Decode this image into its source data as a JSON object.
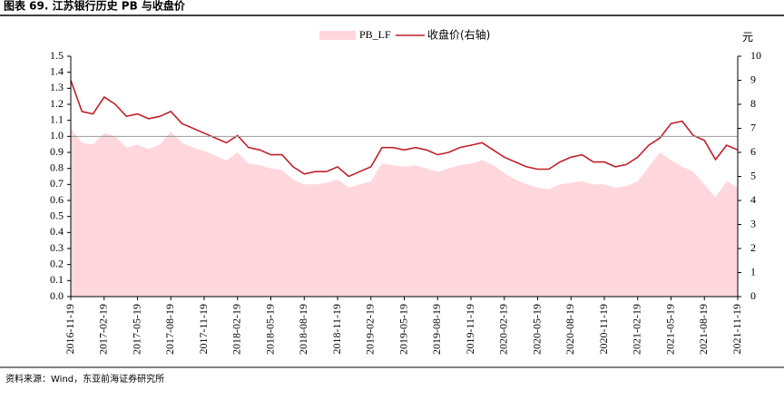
{
  "chart_data": {
    "type": "area-line",
    "title": "图表 69. 江苏银行历史 PB 与收盘价",
    "source": "资料来源：Wind，东亚前海证券研究所",
    "y2label": "元",
    "x": [
      "2016-11-19",
      "2016-12-19",
      "2017-01-19",
      "2017-02-19",
      "2017-03-19",
      "2017-04-19",
      "2017-05-19",
      "2017-06-19",
      "2017-07-19",
      "2017-08-19",
      "2017-09-19",
      "2017-10-19",
      "2017-11-19",
      "2017-12-19",
      "2018-01-19",
      "2018-02-19",
      "2018-03-19",
      "2018-04-19",
      "2018-05-19",
      "2018-06-19",
      "2018-07-19",
      "2018-08-19",
      "2018-09-19",
      "2018-10-19",
      "2018-11-19",
      "2018-12-19",
      "2019-01-19",
      "2019-02-19",
      "2019-03-19",
      "2019-04-19",
      "2019-05-19",
      "2019-06-19",
      "2019-07-19",
      "2019-08-19",
      "2019-09-19",
      "2019-10-19",
      "2019-11-19",
      "2019-12-19",
      "2020-01-19",
      "2020-02-19",
      "2020-03-19",
      "2020-04-19",
      "2020-05-19",
      "2020-06-19",
      "2020-07-19",
      "2020-08-19",
      "2020-09-19",
      "2020-10-19",
      "2020-11-19",
      "2020-12-19",
      "2021-01-19",
      "2021-02-19",
      "2021-03-19",
      "2021-04-19",
      "2021-05-19",
      "2021-06-19",
      "2021-07-19",
      "2021-08-19",
      "2021-09-19",
      "2021-10-19",
      "2021-11-19"
    ],
    "series": [
      {
        "name": "PB_LF",
        "color": "#ffd7dc",
        "kind": "area",
        "values": [
          1.05,
          0.96,
          0.95,
          1.02,
          1.0,
          0.93,
          0.95,
          0.92,
          0.95,
          1.03,
          0.96,
          0.93,
          0.91,
          0.88,
          0.85,
          0.9,
          0.83,
          0.82,
          0.8,
          0.79,
          0.73,
          0.7,
          0.7,
          0.71,
          0.73,
          0.68,
          0.7,
          0.72,
          0.83,
          0.82,
          0.81,
          0.82,
          0.8,
          0.78,
          0.8,
          0.82,
          0.83,
          0.85,
          0.82,
          0.77,
          0.73,
          0.7,
          0.68,
          0.67,
          0.7,
          0.71,
          0.72,
          0.7,
          0.7,
          0.68,
          0.69,
          0.72,
          0.81,
          0.9,
          0.85,
          0.81,
          0.78,
          0.7,
          0.62,
          0.72,
          0.68
        ]
      },
      {
        "name": "收盘价(右轴)",
        "color": "#c0202a",
        "kind": "line",
        "axis": "y2",
        "values": [
          9.0,
          7.7,
          7.6,
          8.3,
          8.0,
          7.5,
          7.6,
          7.4,
          7.5,
          7.7,
          7.2,
          7.0,
          6.8,
          6.6,
          6.4,
          6.7,
          6.2,
          6.1,
          5.9,
          5.9,
          5.4,
          5.1,
          5.2,
          5.2,
          5.4,
          5.0,
          5.2,
          5.4,
          6.2,
          6.2,
          6.1,
          6.2,
          6.1,
          5.9,
          6.0,
          6.2,
          6.3,
          6.4,
          6.1,
          5.8,
          5.6,
          5.4,
          5.3,
          5.3,
          5.6,
          5.8,
          5.9,
          5.6,
          5.6,
          5.4,
          5.5,
          5.8,
          6.3,
          6.6,
          7.2,
          7.3,
          6.7,
          6.5,
          5.7,
          6.3,
          6.1
        ]
      }
    ],
    "hline": 1.0,
    "ylim": [
      0,
      1.5
    ],
    "yticks": [
      {
        "value": 0,
        "label": "0.0"
      },
      {
        "value": 0.1,
        "label": "0.1"
      },
      {
        "value": 0.2,
        "label": "0.2"
      },
      {
        "value": 0.3,
        "label": "0.3"
      },
      {
        "value": 0.4,
        "label": "0.4"
      },
      {
        "value": 0.5,
        "label": "0.5"
      },
      {
        "value": 0.6,
        "label": "0.6"
      },
      {
        "value": 0.7,
        "label": "0.7"
      },
      {
        "value": 0.8,
        "label": "0.8"
      },
      {
        "value": 0.9,
        "label": "0.9"
      },
      {
        "value": 1.0,
        "label": "1.0"
      },
      {
        "value": 1.1,
        "label": "1.1"
      },
      {
        "value": 1.2,
        "label": "1.2"
      },
      {
        "value": 1.3,
        "label": "1.3"
      },
      {
        "value": 1.4,
        "label": "1.4"
      },
      {
        "value": 1.5,
        "label": "1.5"
      }
    ],
    "y2lim": [
      0,
      10
    ],
    "y2ticks": [
      0,
      1,
      2,
      3,
      4,
      5,
      6,
      7,
      8,
      9,
      10
    ],
    "xticks": [
      "2016-11-19",
      "2017-02-19",
      "2017-05-19",
      "2017-08-19",
      "2017-11-19",
      "2018-02-19",
      "2018-05-19",
      "2018-08-19",
      "2018-11-19",
      "2019-02-19",
      "2019-05-19",
      "2019-08-19",
      "2019-11-19",
      "2020-02-19",
      "2020-05-19",
      "2020-08-19",
      "2020-11-19",
      "2021-02-19",
      "2021-05-19",
      "2021-08-19",
      "2021-11-19"
    ]
  }
}
